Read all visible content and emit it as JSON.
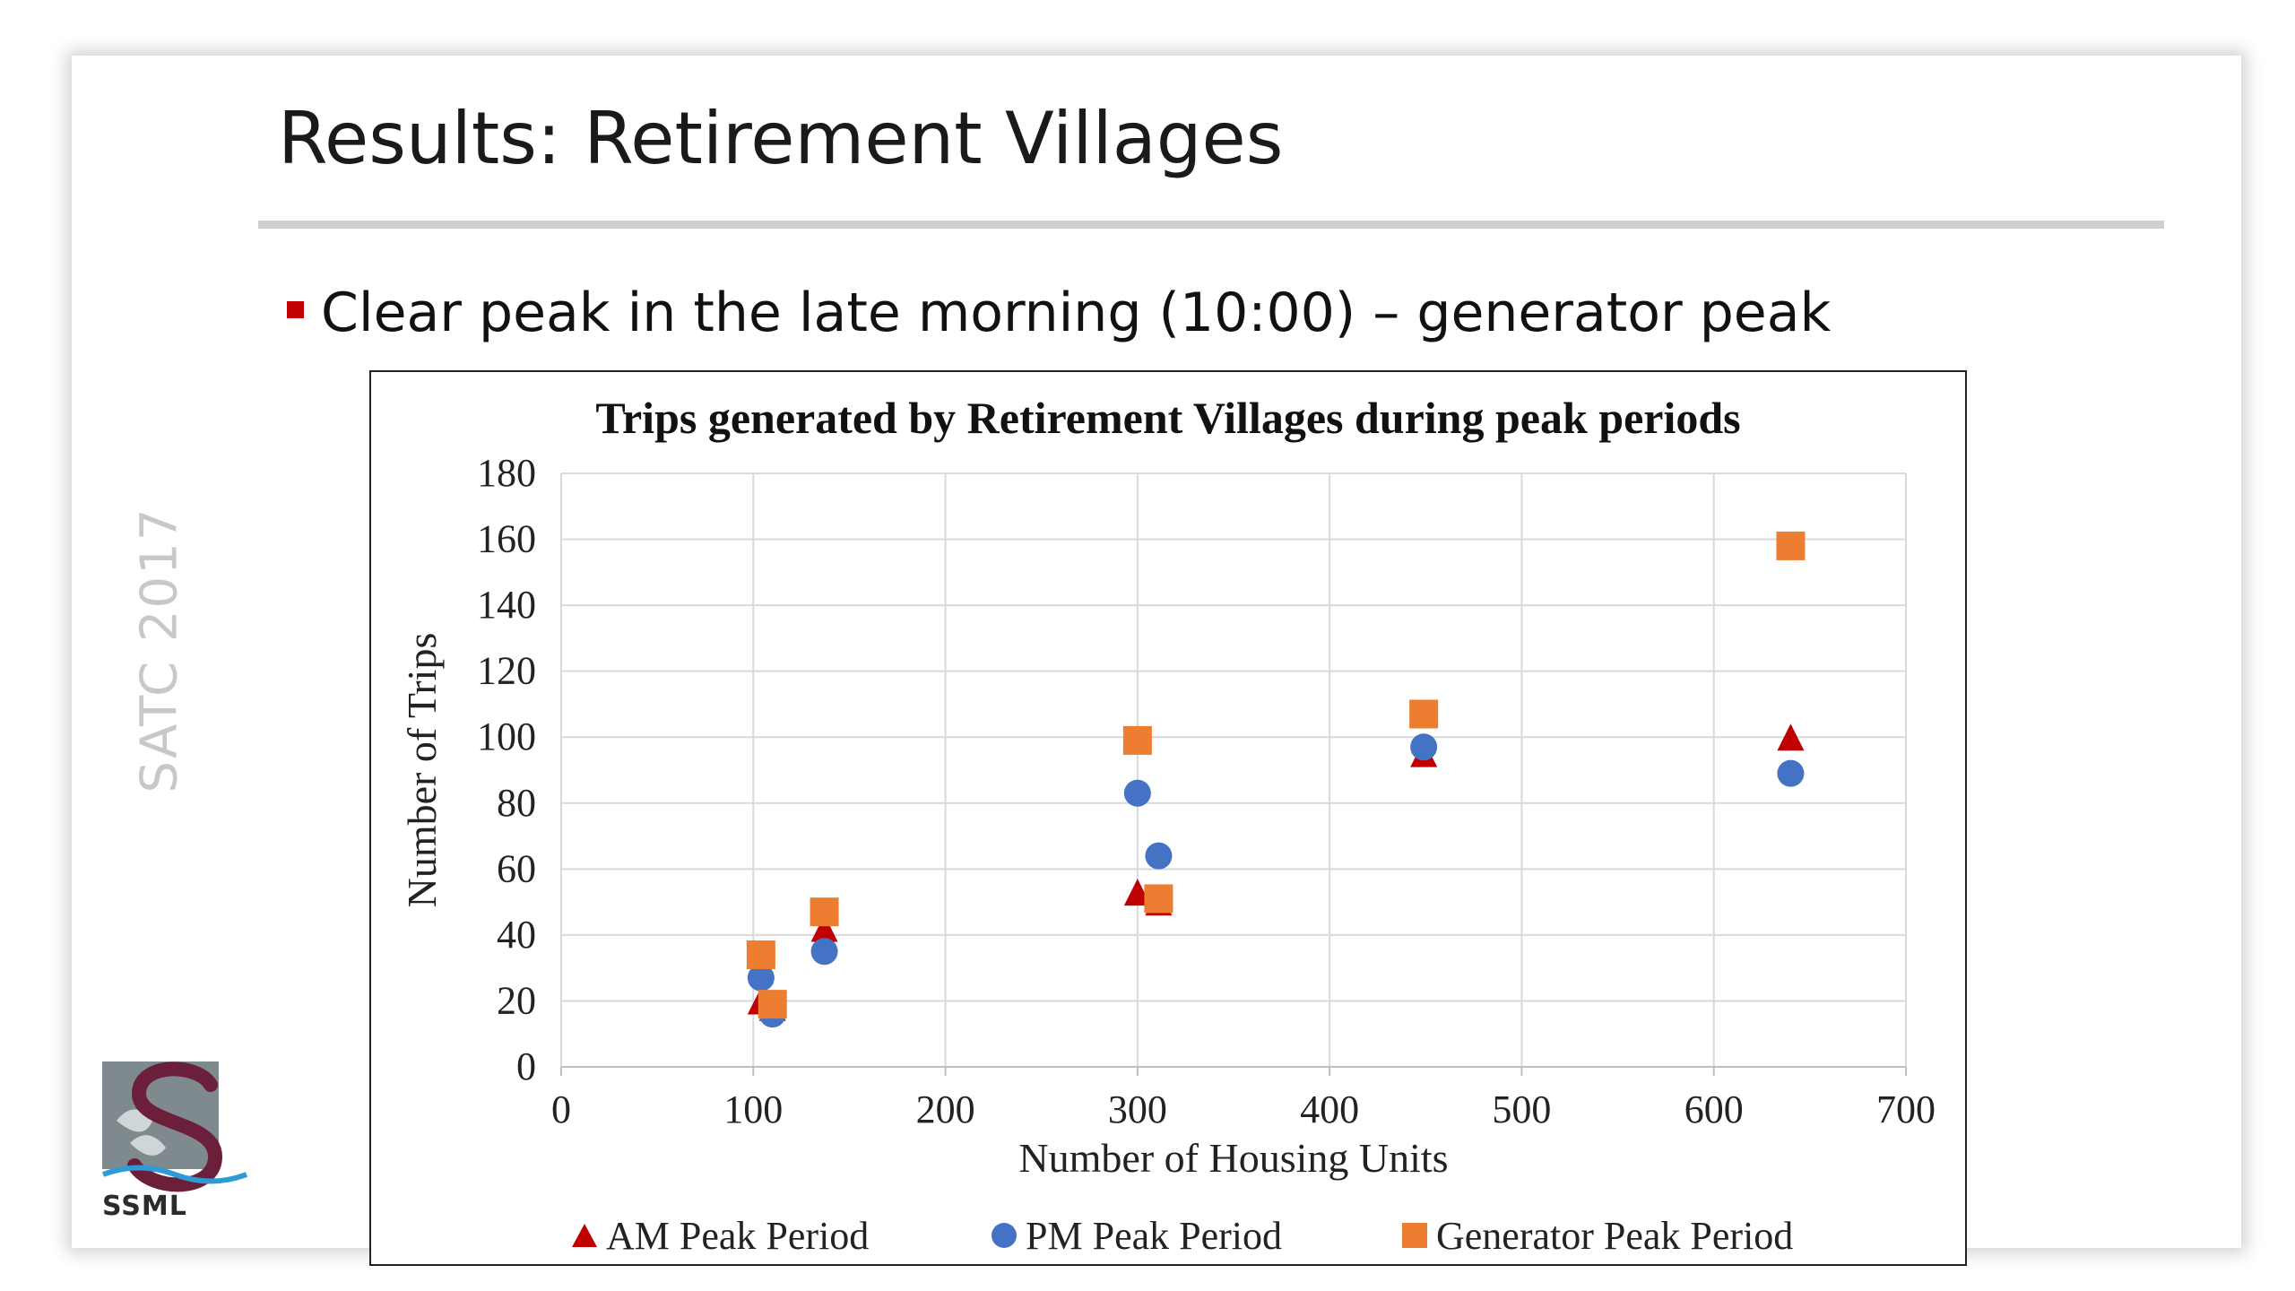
{
  "slide": {
    "title": "Results: Retirement Villages",
    "bullet": "Clear peak in the late morning (10:00) – generator peak",
    "side_label": "SATC 2017",
    "logo_text": "SSML"
  },
  "colors": {
    "bullet": "#c00000",
    "am": "#c00000",
    "pm": "#4472c4",
    "generator": "#ed7d31",
    "grid": "#d9d9d9"
  },
  "chart_data": {
    "type": "scatter",
    "title": "Trips generated by Retirement Villages during peak periods",
    "xlabel": "Number of Housing Units",
    "ylabel": "Number of Trips",
    "xlim": [
      0,
      700
    ],
    "ylim": [
      0,
      180
    ],
    "x_ticks": [
      "0",
      "100",
      "200",
      "300",
      "400",
      "500",
      "600",
      "700"
    ],
    "y_ticks": [
      "0",
      "20",
      "40",
      "60",
      "80",
      "100",
      "120",
      "140",
      "160",
      "180"
    ],
    "grid": true,
    "legend_position": "bottom",
    "series": [
      {
        "name": "AM Peak Period",
        "marker": "triangle",
        "color": "#c00000",
        "points": [
          [
            104,
            20
          ],
          [
            110,
            18
          ],
          [
            137,
            42
          ],
          [
            300,
            53
          ],
          [
            311,
            50
          ],
          [
            449,
            95
          ],
          [
            640,
            100
          ]
        ]
      },
      {
        "name": "PM Peak Period",
        "marker": "circle",
        "color": "#4472c4",
        "points": [
          [
            104,
            27
          ],
          [
            110,
            16
          ],
          [
            137,
            35
          ],
          [
            300,
            83
          ],
          [
            311,
            64
          ],
          [
            449,
            97
          ],
          [
            640,
            89
          ]
        ]
      },
      {
        "name": "Generator Peak Period",
        "marker": "square",
        "color": "#ed7d31",
        "points": [
          [
            104,
            34
          ],
          [
            110,
            19
          ],
          [
            137,
            47
          ],
          [
            300,
            99
          ],
          [
            311,
            51
          ],
          [
            449,
            107
          ],
          [
            640,
            158
          ]
        ]
      }
    ]
  }
}
